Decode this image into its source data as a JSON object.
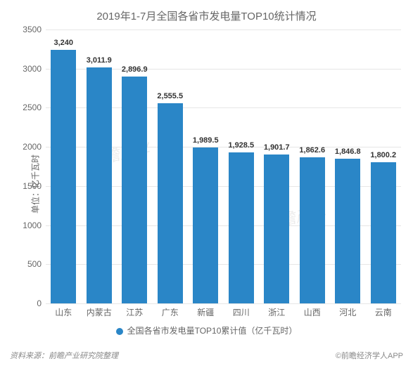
{
  "chart": {
    "type": "bar",
    "title": "2019年1-7月全国各省市发电量TOP10统计情况",
    "title_fontsize": 15,
    "title_color": "#666666",
    "y_label": "单位：亿千瓦时",
    "label_fontsize": 12,
    "label_color": "#666666",
    "categories": [
      "山东",
      "内蒙古",
      "江苏",
      "广东",
      "新疆",
      "四川",
      "浙江",
      "山西",
      "河北",
      "云南"
    ],
    "values": [
      3240,
      3011.9,
      2896.9,
      2555.5,
      1989.5,
      1928.5,
      1901.7,
      1862.6,
      1846.8,
      1800.2
    ],
    "value_labels": [
      "3,240",
      "3,011.9",
      "2,896.9",
      "2,555.5",
      "1,989.5",
      "1,928.5",
      "1,901.7",
      "1,862.6",
      "1,846.8",
      "1,800.2"
    ],
    "bar_color": "#2a86c7",
    "ylim": [
      0,
      3500
    ],
    "ytick_step": 500,
    "yticks": [
      "0",
      "500",
      "1000",
      "1500",
      "2000",
      "2500",
      "3000",
      "3500"
    ],
    "grid_color": "#e6e6e6",
    "background_color": "#ffffff",
    "bar_width": 0.72,
    "value_label_fontsize": 11,
    "value_label_color": "#333333",
    "tick_fontsize": 12,
    "tick_color": "#666666"
  },
  "legend": {
    "label": "全国各省市发电量TOP10累计值（亿千瓦时）",
    "marker_color": "#2a86c7",
    "fontsize": 12,
    "color": "#666666"
  },
  "footer": {
    "source": "资料来源：前瞻产业研究院整理",
    "brand": "©前瞻经济学人APP",
    "fontsize": 11,
    "color": "#888888"
  },
  "watermark": {
    "text": "前瞻产业",
    "color": "#dddddd",
    "fontsize": 22
  }
}
